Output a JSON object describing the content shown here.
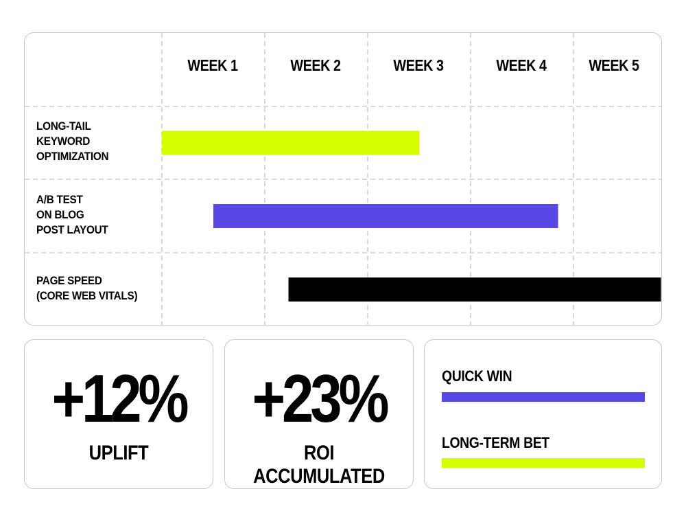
{
  "chart_data": {
    "type": "gantt",
    "x_ticks": [
      "WEEK 1",
      "WEEK 2",
      "WEEK 3",
      "WEEK 4",
      "WEEK 5"
    ],
    "xlim": [
      0,
      5
    ],
    "grid": true,
    "tasks": [
      {
        "label": "LONG-TAIL\nKEYWORD\nOPTIMIZATION",
        "start": 0.0,
        "end": 2.5,
        "color": "#d4ff00"
      },
      {
        "label": "A/B TEST\nON BLOG\nPOST LAYOUT",
        "start": 0.5,
        "end": 3.85,
        "color": "#5a48e6"
      },
      {
        "label": "PAGE SPEED\n(CORE WEB VITALS)",
        "start": 1.23,
        "end": 4.85,
        "color": "#000000"
      }
    ]
  },
  "stats": [
    {
      "value": "+12%",
      "label": "UPLIFT"
    },
    {
      "value": "+23%",
      "label": "ROI ACCUMULATED"
    }
  ],
  "legend": [
    {
      "label": "QUICK WIN",
      "color": "#5a48e6"
    },
    {
      "label": "LONG-TERM BET",
      "color": "#d4ff00"
    }
  ],
  "colors": {
    "grid": "#c4c4c4",
    "border": "#c9c9c9"
  }
}
